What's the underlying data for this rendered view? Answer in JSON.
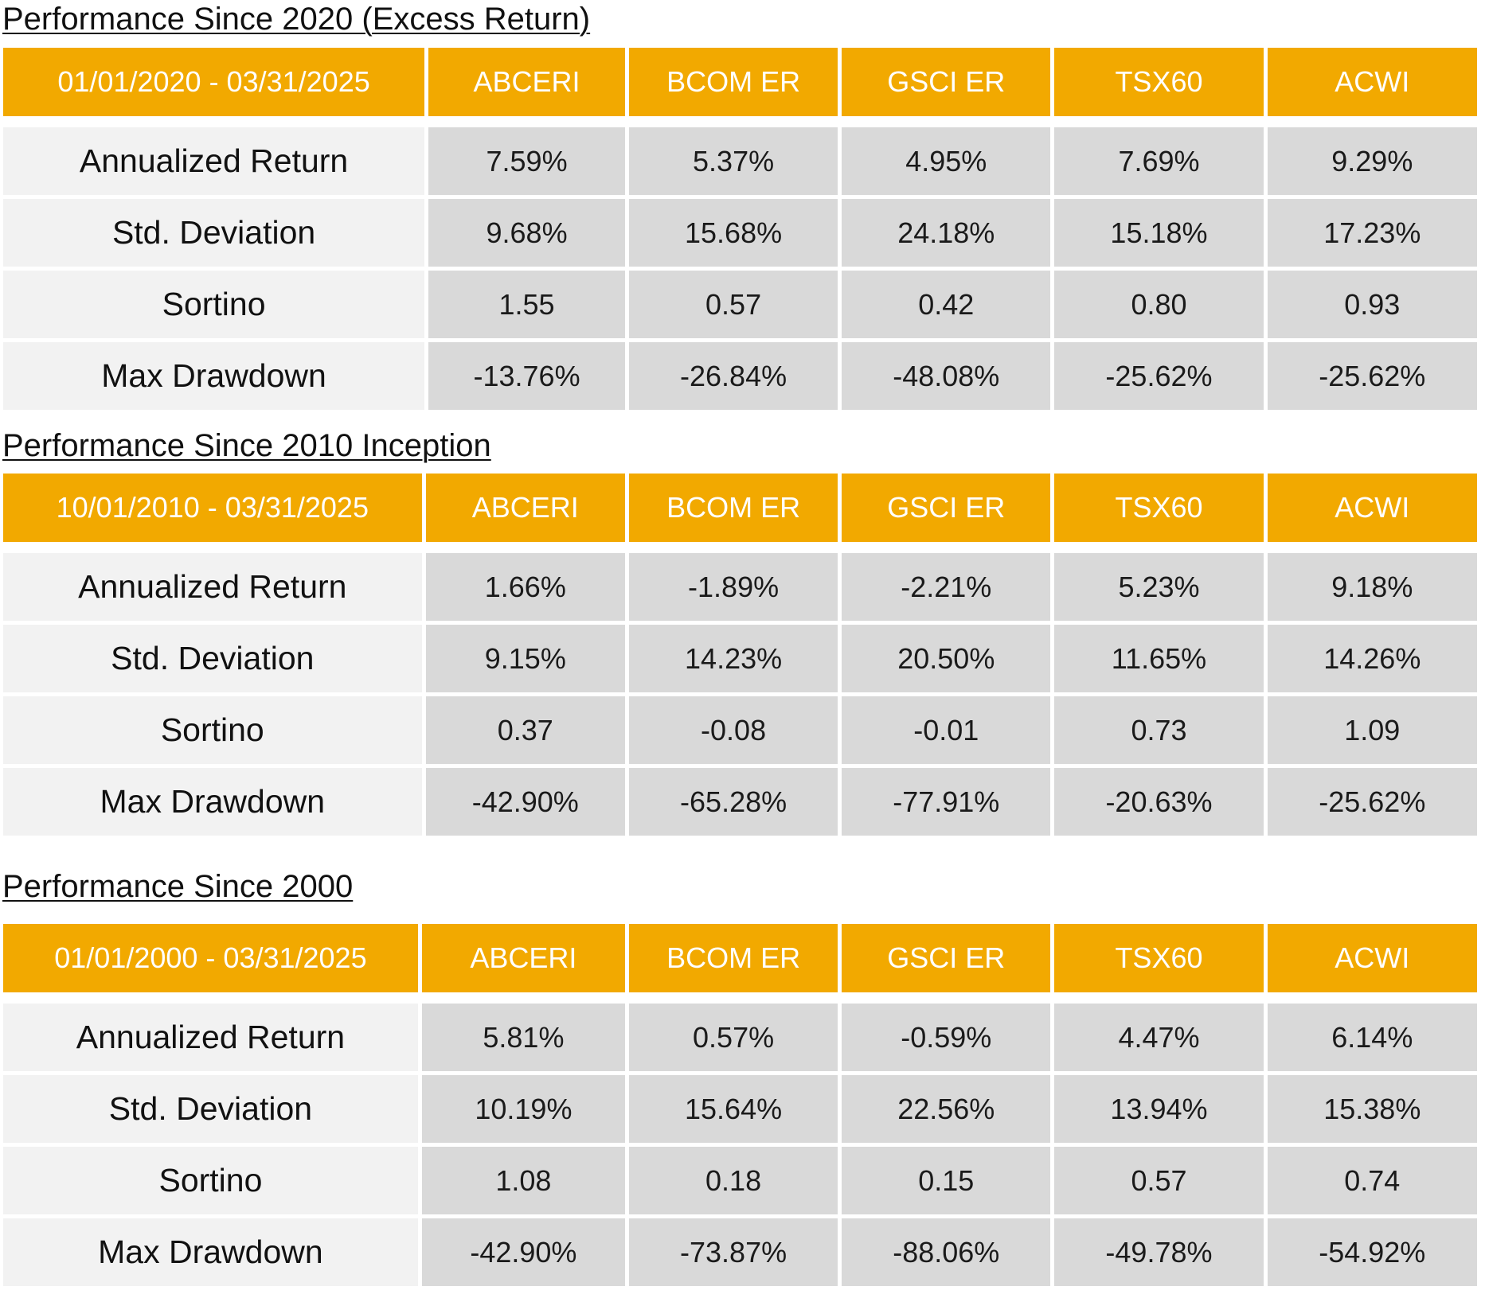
{
  "sections": [
    {
      "title": "Performance Since 2020 (Excess Return)",
      "period": "01/01/2020 - 03/31/2025",
      "columns": [
        "ABCERI",
        "BCOM ER",
        "GSCI ER",
        "TSX60",
        "ACWI"
      ],
      "rows": [
        {
          "label": "Annualized Return",
          "values": [
            "7.59%",
            "5.37%",
            "4.95%",
            "7.69%",
            "9.29%"
          ]
        },
        {
          "label": "Std. Deviation",
          "values": [
            "9.68%",
            "15.68%",
            "24.18%",
            "15.18%",
            "17.23%"
          ]
        },
        {
          "label": "Sortino",
          "values": [
            "1.55",
            "0.57",
            "0.42",
            "0.80",
            "0.93"
          ]
        },
        {
          "label": "Max Drawdown",
          "values": [
            "-13.76%",
            "-26.84%",
            "-48.08%",
            "-25.62%",
            "-25.62%"
          ]
        }
      ]
    },
    {
      "title": "Performance Since 2010 Inception",
      "period": "10/01/2010 - 03/31/2025",
      "columns": [
        "ABCERI",
        "BCOM ER",
        "GSCI ER",
        "TSX60",
        "ACWI"
      ],
      "rows": [
        {
          "label": "Annualized Return",
          "values": [
            "1.66%",
            "-1.89%",
            "-2.21%",
            "5.23%",
            "9.18%"
          ]
        },
        {
          "label": "Std. Deviation",
          "values": [
            "9.15%",
            "14.23%",
            "20.50%",
            "11.65%",
            "14.26%"
          ]
        },
        {
          "label": "Sortino",
          "values": [
            "0.37",
            "-0.08",
            "-0.01",
            "0.73",
            "1.09"
          ]
        },
        {
          "label": "Max Drawdown",
          "values": [
            "-42.90%",
            "-65.28%",
            "-77.91%",
            "-20.63%",
            "-25.62%"
          ]
        }
      ]
    },
    {
      "title": "Performance Since 2000",
      "period": "01/01/2000 - 03/31/2025",
      "columns": [
        "ABCERI",
        "BCOM ER",
        "GSCI ER",
        "TSX60",
        "ACWI"
      ],
      "rows": [
        {
          "label": "Annualized Return",
          "values": [
            "5.81%",
            "0.57%",
            "-0.59%",
            "4.47%",
            "6.14%"
          ]
        },
        {
          "label": "Std. Deviation",
          "values": [
            "10.19%",
            "15.64%",
            "22.56%",
            "13.94%",
            "15.38%"
          ]
        },
        {
          "label": "Sortino",
          "values": [
            "1.08",
            "0.18",
            "0.15",
            "0.57",
            "0.74"
          ]
        },
        {
          "label": "Max Drawdown",
          "values": [
            "-42.90%",
            "-73.87%",
            "-88.06%",
            "-49.78%",
            "-54.92%"
          ]
        }
      ]
    }
  ],
  "colors": {
    "header_bg": "#f2a900",
    "header_text": "#ffffff",
    "label_bg": "#f2f2f2",
    "value_bg": "#d9d9d9"
  }
}
